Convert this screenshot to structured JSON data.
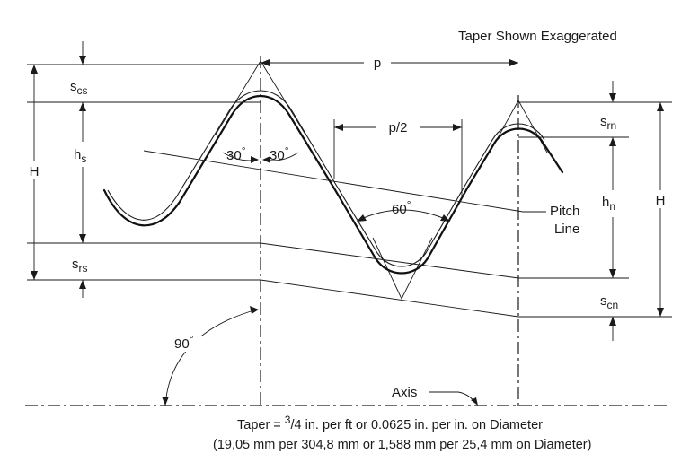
{
  "title": "Taper Shown Exaggerated",
  "labels": {
    "p": "p",
    "p_half": "p/2",
    "H_left": "H",
    "H_right": "H",
    "h_s": "h",
    "h_s_sub": "s",
    "h_n": "h",
    "h_n_sub": "n",
    "s_cs": "s",
    "s_cs_sub": "cs",
    "s_rs": "s",
    "s_rs_sub": "rs",
    "s_rn": "s",
    "s_rn_sub": "rn",
    "s_cn": "s",
    "s_cn_sub": "cn",
    "angle_30_left": "30",
    "angle_30_right": "30",
    "angle_60": "60",
    "angle_90": "90",
    "degree": "°",
    "pitch_line_1": "Pitch",
    "pitch_line_2": "Line",
    "axis": "Axis"
  },
  "caption": {
    "line1_prefix": "Taper = ",
    "line1_sup": "3",
    "line1_rest": "/4 in. per ft or 0.0625 in. per in. on Diameter",
    "line2": "(19,05 mm per 304,8 mm or 1,588 mm per 25,4 mm on Diameter)"
  }
}
